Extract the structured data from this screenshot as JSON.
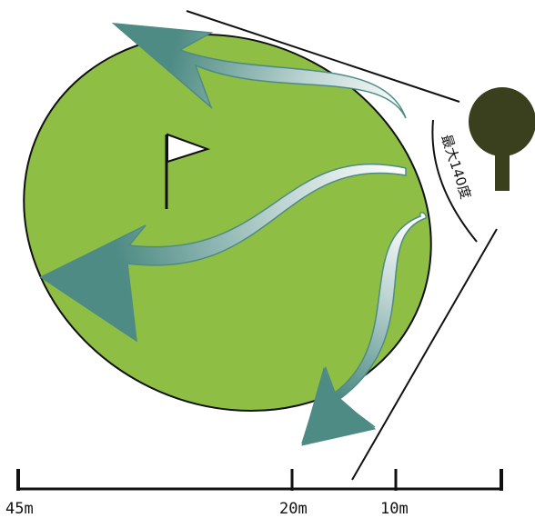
{
  "colors": {
    "green": "#8fbe45",
    "arrow": "#4e8b84",
    "tree": "#3a3f1e",
    "line": "#111111",
    "flag": "#ffffff"
  },
  "icons": [
    "flag-icon",
    "tree-icon"
  ],
  "angle_label": "最大140度",
  "scale": {
    "labels": [
      "45m",
      "20m",
      "10m"
    ]
  }
}
